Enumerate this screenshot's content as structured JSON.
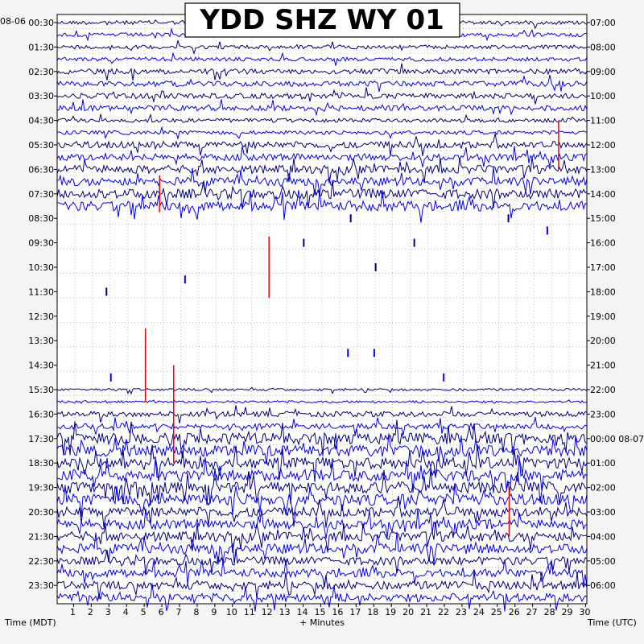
{
  "chart_data": {
    "type": "line",
    "title": "YDD SHZ WY 01",
    "left_date_label": "08-06",
    "right_date_label_2": "08-07",
    "xlabel": "+ Minutes",
    "left_axis_title": "Time (MDT)",
    "right_axis_title": "Time (UTC)",
    "x_ticks": [
      "1",
      "2",
      "3",
      "4",
      "5",
      "6",
      "7",
      "8",
      "9",
      "10",
      "11",
      "12",
      "13",
      "14",
      "15",
      "16",
      "17",
      "18",
      "19",
      "20",
      "21",
      "22",
      "23",
      "24",
      "25",
      "26",
      "27",
      "28",
      "29",
      "30"
    ],
    "xlim": [
      0,
      30
    ],
    "left_hour_labels": [
      "00:30",
      "01:30",
      "02:30",
      "03:30",
      "04:30",
      "05:30",
      "06:30",
      "07:30",
      "08:30",
      "09:30",
      "10:30",
      "11:30",
      "12:30",
      "13:30",
      "14:30",
      "15:30",
      "16:30",
      "17:30",
      "18:30",
      "19:30",
      "20:30",
      "21:30",
      "22:30",
      "23:30"
    ],
    "right_hour_labels": [
      "07:00",
      "08:00",
      "09:00",
      "10:00",
      "11:00",
      "12:00",
      "13:00",
      "14:00",
      "15:00",
      "16:00",
      "17:00",
      "18:00",
      "19:00",
      "20:00",
      "21:00",
      "22:00",
      "23:00",
      "00:00 08-07",
      "01:00",
      "02:00",
      "03:00",
      "04:00",
      "05:00",
      "06:00"
    ],
    "trace_count": 48,
    "trace_colors": [
      "#000080",
      "#0000ff"
    ],
    "clip_color": "#ff0000",
    "grid": true,
    "activity_level_per_hour": [
      2,
      2,
      3,
      3,
      2,
      4,
      5,
      6,
      0,
      0,
      0,
      0,
      0,
      0,
      0,
      1,
      3,
      7,
      7,
      7,
      6,
      6,
      5,
      5
    ]
  }
}
